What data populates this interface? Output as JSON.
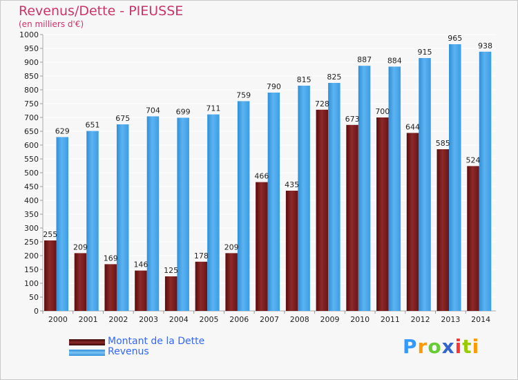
{
  "header": {
    "title": "Revenus/Dette - PIEUSSE",
    "subtitle": "(en milliers d'€)"
  },
  "legend": {
    "debt_label": "Montant de la Dette",
    "revenue_label": "Revenus"
  },
  "logo": {
    "letters": [
      "P",
      "r",
      "o",
      "x",
      "i",
      "t",
      "i"
    ],
    "colors": [
      "#3399ff",
      "#ff9900",
      "#66cc33",
      "#3366cc",
      "#ff3333",
      "#99cc00",
      "#ff9900"
    ]
  },
  "colors": {
    "debt": "#6b1414",
    "debt_light": "#a13a3a",
    "revenue": "#3a9de6",
    "revenue_light": "#5db3f0",
    "background": "#f7f7f7",
    "grid": "#ffffff",
    "axis_text": "#222222",
    "title": "#cc3366",
    "legend_text": "#3366ff"
  },
  "chart_data": {
    "type": "bar",
    "categories": [
      "2000",
      "2001",
      "2002",
      "2003",
      "2004",
      "2005",
      "2006",
      "2007",
      "2008",
      "2009",
      "2010",
      "2011",
      "2012",
      "2013",
      "2014"
    ],
    "series": [
      {
        "name": "Montant de la Dette",
        "values": [
          255,
          209,
          169,
          146,
          125,
          178,
          209,
          466,
          435,
          728,
          673,
          700,
          644,
          585,
          524
        ]
      },
      {
        "name": "Revenus",
        "values": [
          629,
          651,
          675,
          704,
          699,
          711,
          759,
          790,
          815,
          825,
          887,
          884,
          915,
          965,
          938
        ]
      }
    ],
    "title": "Revenus/Dette - PIEUSSE",
    "subtitle": "(en milliers d'€)",
    "xlabel": "",
    "ylabel": "",
    "ylim": [
      0,
      1000
    ],
    "ytick_step": 50,
    "grid": true,
    "legend_position": "bottom-left"
  }
}
